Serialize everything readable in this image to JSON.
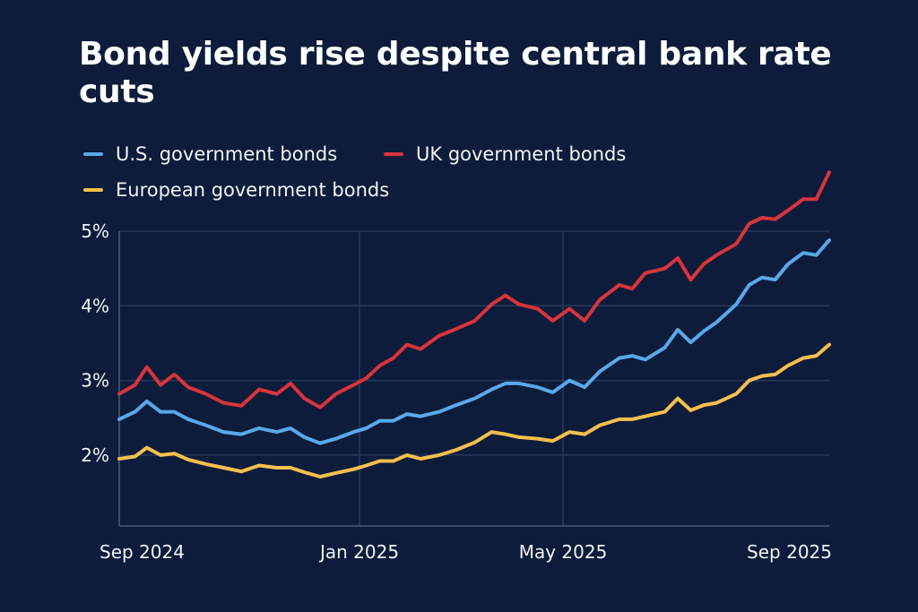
{
  "chart_data": {
    "type": "line",
    "title": "Bond yields rise despite central bank rate cuts",
    "xlabel": "",
    "ylabel": "",
    "ylim": [
      1.05,
      5.8
    ],
    "grid": true,
    "legend_position": "top-left",
    "y_ticks": [
      {
        "value": 2,
        "label": "2%"
      },
      {
        "value": 3,
        "label": "3%"
      },
      {
        "value": 4,
        "label": "4%"
      },
      {
        "value": 5,
        "label": "5%"
      }
    ],
    "x_ticks": [
      {
        "date": "2024-09-01",
        "label": "Sep 2024"
      },
      {
        "date": "2025-01-01",
        "label": "Jan 2025"
      },
      {
        "date": "2025-05-01",
        "label": "May 2025"
      },
      {
        "date": "2025-09-01",
        "label": "Sep 2025"
      }
    ],
    "x": [
      "2024-09-01",
      "2024-09-09",
      "2024-09-15",
      "2024-09-22",
      "2024-09-29",
      "2024-10-06",
      "2024-10-15",
      "2024-10-24",
      "2024-11-02",
      "2024-11-11",
      "2024-11-20",
      "2024-11-27",
      "2024-12-04",
      "2024-12-12",
      "2024-12-20",
      "2024-12-29",
      "2025-01-05",
      "2025-01-13",
      "2025-01-21",
      "2025-01-29",
      "2025-02-06",
      "2025-02-17",
      "2025-02-27",
      "2025-03-10",
      "2025-03-20",
      "2025-03-28",
      "2025-04-05",
      "2025-04-16",
      "2025-04-25",
      "2025-05-04",
      "2025-05-11",
      "2025-05-18",
      "2025-05-27",
      "2025-06-02",
      "2025-06-08",
      "2025-06-17",
      "2025-06-23",
      "2025-06-29",
      "2025-07-05",
      "2025-07-11",
      "2025-07-20",
      "2025-07-26",
      "2025-08-01",
      "2025-08-07",
      "2025-08-13",
      "2025-08-20",
      "2025-08-26",
      "2025-09-01"
    ],
    "series": [
      {
        "name": "U.S. government bonds",
        "color": "#5aa8ea",
        "values": [
          2.48,
          2.58,
          2.72,
          2.58,
          2.58,
          2.48,
          2.4,
          2.31,
          2.28,
          2.36,
          2.31,
          2.36,
          2.24,
          2.16,
          2.22,
          2.31,
          2.36,
          2.46,
          2.46,
          2.55,
          2.52,
          2.58,
          2.67,
          2.76,
          2.88,
          2.96,
          2.96,
          2.91,
          2.84,
          3.0,
          2.91,
          3.12,
          3.3,
          3.33,
          3.28,
          3.44,
          3.68,
          3.51,
          3.66,
          3.78,
          4.02,
          4.28,
          4.38,
          4.35,
          4.56,
          4.71,
          4.68,
          4.88
        ]
      },
      {
        "name": "UK government bonds",
        "color": "#d8343c",
        "values": [
          2.82,
          2.94,
          3.18,
          2.94,
          3.08,
          2.91,
          2.82,
          2.7,
          2.66,
          2.88,
          2.82,
          2.96,
          2.76,
          2.64,
          2.82,
          2.94,
          3.03,
          3.2,
          3.3,
          3.48,
          3.42,
          3.6,
          3.69,
          3.8,
          4.02,
          4.14,
          4.02,
          3.96,
          3.8,
          3.96,
          3.8,
          4.08,
          4.28,
          4.23,
          4.44,
          4.5,
          4.64,
          4.35,
          4.56,
          4.68,
          4.83,
          5.1,
          5.18,
          5.16,
          5.28,
          5.43,
          5.43,
          5.79
        ]
      },
      {
        "name": "European government bonds",
        "color": "#f6bf4e",
        "values": [
          1.95,
          1.98,
          2.1,
          2.0,
          2.02,
          1.94,
          1.88,
          1.83,
          1.78,
          1.86,
          1.83,
          1.83,
          1.77,
          1.71,
          1.76,
          1.81,
          1.86,
          1.92,
          1.92,
          2.0,
          1.95,
          2.0,
          2.07,
          2.17,
          2.31,
          2.28,
          2.24,
          2.22,
          2.19,
          2.31,
          2.28,
          2.4,
          2.48,
          2.48,
          2.52,
          2.58,
          2.76,
          2.6,
          2.67,
          2.7,
          2.82,
          3.0,
          3.06,
          3.08,
          3.2,
          3.3,
          3.33,
          3.48
        ]
      }
    ]
  },
  "colors": {
    "background": "#0c1c3a",
    "grid": "#27385a",
    "axis": "#3a4a6a"
  }
}
